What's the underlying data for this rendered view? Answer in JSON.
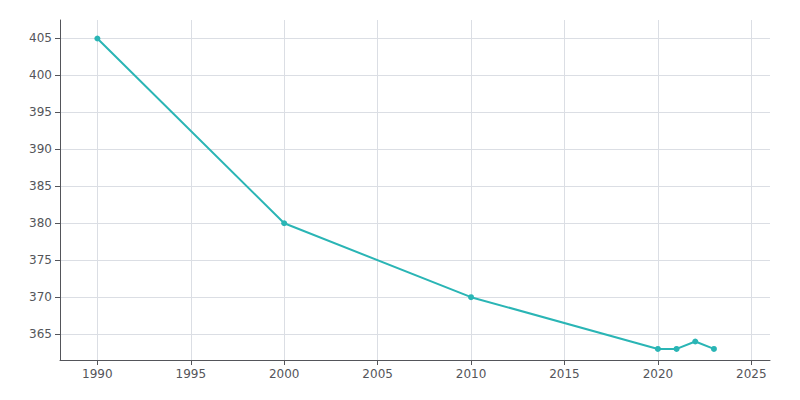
{
  "chart_data": {
    "type": "line",
    "x": [
      1990,
      2000,
      2010,
      2020,
      2021,
      2022,
      2023
    ],
    "values": [
      405,
      380,
      370,
      363,
      363,
      364,
      363
    ],
    "color": "#2ab5b5",
    "marker": "circle",
    "xlim": [
      1988,
      2026
    ],
    "xticks": [
      1990,
      1995,
      2000,
      2005,
      2010,
      2015,
      2020,
      2025
    ],
    "ylim": [
      361.5,
      407.5
    ],
    "yticks": [
      365,
      370,
      375,
      380,
      385,
      390,
      395,
      400,
      405
    ],
    "grid": true
  }
}
